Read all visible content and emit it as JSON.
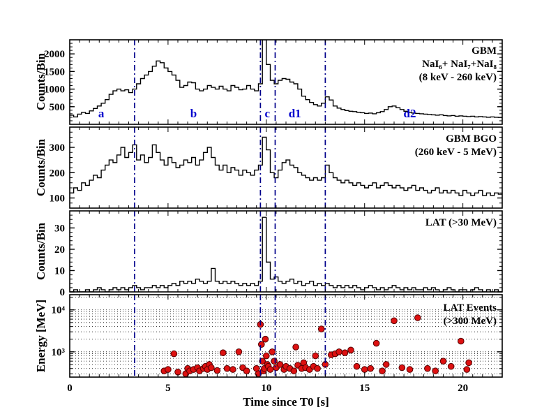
{
  "figure": {
    "xlabel": "Time since T0 [s]",
    "x_range": [
      0,
      22
    ],
    "x_ticks": [
      0,
      5,
      10,
      15,
      20
    ],
    "interval_lines": [
      3.3,
      9.7,
      10.45,
      13.0
    ],
    "interval_labels": [
      {
        "label": "a",
        "t": 1.6
      },
      {
        "label": "b",
        "t": 6.3
      },
      {
        "label": "c",
        "t": 10.05
      },
      {
        "label": "d1",
        "t": 11.45
      },
      {
        "label": "d2",
        "t": 17.3
      }
    ],
    "line_color": "#00008b",
    "label_color": "#0000cd",
    "marker_color": "#dd1111",
    "marker_edge_color": "#550000"
  },
  "chart_data": [
    {
      "type": "step",
      "title": "GBM NaI light curve",
      "annotation_lines": [
        "GBM",
        "NaI₆+ NaI₇+NaI₈",
        "(8 keV - 260 keV)"
      ],
      "ylabel": "Counts/Bin",
      "ylim": [
        0,
        2400
      ],
      "yticks": [
        {
          "v": 500,
          "label": "500"
        },
        {
          "v": 1000,
          "label": "1000"
        },
        {
          "v": 1500,
          "label": "1500"
        },
        {
          "v": 2000,
          "label": "2000"
        }
      ],
      "bins": {
        "t0": 0,
        "dt": 0.2
      },
      "values": [
        260,
        210,
        290,
        340,
        310,
        380,
        450,
        520,
        600,
        700,
        850,
        950,
        1000,
        950,
        980,
        900,
        1000,
        1150,
        1300,
        1400,
        1500,
        1650,
        1800,
        1750,
        1600,
        1500,
        1400,
        1250,
        1050,
        1100,
        1200,
        1180,
        1000,
        950,
        1000,
        1100,
        1050,
        1000,
        1080,
        1000,
        950,
        1100,
        1050,
        980,
        1000,
        1100,
        1000,
        950,
        1150,
        2400,
        1700,
        1250,
        1150,
        1250,
        1300,
        1280,
        1200,
        1150,
        1000,
        800,
        700,
        620,
        560,
        520,
        600,
        780,
        690,
        520,
        460,
        420,
        390,
        370,
        360,
        340,
        330,
        310,
        320,
        300,
        330,
        360,
        420,
        500,
        520,
        470,
        420,
        370,
        340,
        320,
        310,
        300,
        290,
        280,
        270,
        260,
        270,
        250,
        240,
        250,
        230,
        240,
        230,
        220,
        230,
        210,
        220,
        210,
        200,
        210,
        200,
        195
      ]
    },
    {
      "type": "step",
      "title": "GBM BGO light curve",
      "annotation_lines": [
        "GBM BGO",
        "(260 keV - 5 MeV)"
      ],
      "ylabel": "Counts/Bin",
      "ylim": [
        60,
        380
      ],
      "yticks": [
        {
          "v": 100,
          "label": "100"
        },
        {
          "v": 200,
          "label": "200"
        },
        {
          "v": 300,
          "label": "300"
        }
      ],
      "bins": {
        "t0": 0,
        "dt": 0.2
      },
      "values": [
        120,
        140,
        130,
        160,
        150,
        170,
        190,
        180,
        210,
        230,
        250,
        240,
        270,
        300,
        260,
        280,
        310,
        250,
        270,
        240,
        260,
        310,
        280,
        250,
        230,
        260,
        240,
        220,
        230,
        250,
        240,
        260,
        230,
        250,
        280,
        300,
        260,
        230,
        210,
        230,
        200,
        220,
        210,
        190,
        210,
        200,
        190,
        210,
        230,
        340,
        290,
        200,
        180,
        210,
        240,
        250,
        230,
        220,
        200,
        190,
        180,
        170,
        180,
        170,
        180,
        230,
        200,
        180,
        170,
        160,
        170,
        160,
        150,
        160,
        150,
        140,
        150,
        160,
        140,
        150,
        160,
        150,
        140,
        150,
        140,
        130,
        140,
        150,
        130,
        140,
        130,
        120,
        130,
        140,
        120,
        130,
        120,
        130,
        120,
        110,
        130,
        120,
        110,
        120,
        130,
        110,
        120,
        110,
        120,
        115
      ]
    },
    {
      "type": "step",
      "title": "LAT light curve",
      "annotation_lines": [
        "LAT (>30 MeV)"
      ],
      "ylabel": "Counts/Bin",
      "ylim": [
        0,
        38
      ],
      "yticks": [
        {
          "v": 0,
          "label": "0"
        },
        {
          "v": 10,
          "label": "10"
        },
        {
          "v": 20,
          "label": "20"
        },
        {
          "v": 30,
          "label": "30"
        }
      ],
      "bins": {
        "t0": 0,
        "dt": 0.2
      },
      "values": [
        0,
        1,
        0,
        0,
        1,
        0,
        1,
        2,
        1,
        0,
        1,
        2,
        1,
        2,
        1,
        2,
        3,
        2,
        1,
        2,
        2,
        3,
        2,
        3,
        2,
        3,
        4,
        3,
        5,
        4,
        5,
        4,
        6,
        5,
        4,
        5,
        11,
        5,
        4,
        5,
        4,
        5,
        4,
        3,
        4,
        3,
        4,
        3,
        5,
        35,
        14,
        6,
        7,
        5,
        4,
        5,
        6,
        4,
        5,
        3,
        4,
        5,
        3,
        4,
        3,
        4,
        3,
        2,
        3,
        2,
        3,
        2,
        3,
        2,
        1,
        2,
        3,
        2,
        1,
        2,
        1,
        2,
        3,
        2,
        1,
        2,
        1,
        2,
        1,
        1,
        2,
        1,
        2,
        1,
        0,
        1,
        2,
        1,
        0,
        1,
        1,
        0,
        1,
        2,
        1,
        0,
        1,
        0,
        1,
        0
      ]
    },
    {
      "type": "scatter",
      "title": "LAT Events",
      "annotation_lines": [
        "LAT Events",
        "(>300 MeV)"
      ],
      "ylabel": "Energy [MeV]",
      "yscale": "log",
      "ylim": [
        250,
        23000
      ],
      "yticks": [
        {
          "v": 1000,
          "label": "10³"
        },
        {
          "v": 10000,
          "label": "10⁴"
        }
      ],
      "points": [
        [
          4.8,
          350
        ],
        [
          5.0,
          380
        ],
        [
          5.3,
          900
        ],
        [
          5.5,
          330
        ],
        [
          5.9,
          300
        ],
        [
          6.0,
          400
        ],
        [
          6.1,
          350
        ],
        [
          6.3,
          380
        ],
        [
          6.5,
          420
        ],
        [
          6.6,
          350
        ],
        [
          6.8,
          400
        ],
        [
          6.9,
          450
        ],
        [
          7.0,
          380
        ],
        [
          7.1,
          500
        ],
        [
          7.2,
          420
        ],
        [
          7.5,
          360
        ],
        [
          7.8,
          950
        ],
        [
          8.0,
          400
        ],
        [
          8.3,
          380
        ],
        [
          8.6,
          1000
        ],
        [
          8.8,
          420
        ],
        [
          9.0,
          350
        ],
        [
          9.5,
          400
        ],
        [
          9.6,
          300
        ],
        [
          9.7,
          4500
        ],
        [
          9.75,
          1500
        ],
        [
          9.8,
          600
        ],
        [
          9.85,
          350
        ],
        [
          9.9,
          400
        ],
        [
          9.95,
          2000
        ],
        [
          10.0,
          800
        ],
        [
          10.05,
          500
        ],
        [
          10.1,
          450
        ],
        [
          10.2,
          380
        ],
        [
          10.3,
          1000
        ],
        [
          10.4,
          600
        ],
        [
          10.5,
          420
        ],
        [
          10.7,
          500
        ],
        [
          10.9,
          380
        ],
        [
          11.0,
          450
        ],
        [
          11.2,
          400
        ],
        [
          11.4,
          350
        ],
        [
          11.5,
          1300
        ],
        [
          11.6,
          480
        ],
        [
          11.8,
          400
        ],
        [
          11.9,
          550
        ],
        [
          12.0,
          420
        ],
        [
          12.2,
          380
        ],
        [
          12.4,
          450
        ],
        [
          12.5,
          800
        ],
        [
          12.6,
          400
        ],
        [
          12.8,
          3500
        ],
        [
          13.0,
          500
        ],
        [
          13.3,
          850
        ],
        [
          13.5,
          900
        ],
        [
          13.7,
          1000
        ],
        [
          14.0,
          950
        ],
        [
          14.3,
          1100
        ],
        [
          14.6,
          450
        ],
        [
          15.0,
          380
        ],
        [
          15.3,
          400
        ],
        [
          15.6,
          1600
        ],
        [
          15.9,
          350
        ],
        [
          16.1,
          500
        ],
        [
          16.5,
          5500
        ],
        [
          16.9,
          420
        ],
        [
          17.3,
          380
        ],
        [
          17.7,
          6500
        ],
        [
          18.2,
          400
        ],
        [
          18.6,
          350
        ],
        [
          19.0,
          600
        ],
        [
          19.4,
          450
        ],
        [
          19.9,
          1800
        ],
        [
          20.2,
          380
        ],
        [
          20.3,
          550
        ]
      ]
    }
  ]
}
